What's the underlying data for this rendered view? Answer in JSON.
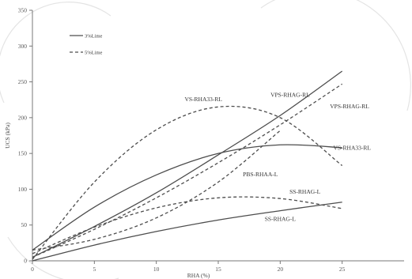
{
  "chart_data": {
    "type": "line",
    "xlabel": "RHA (%)",
    "ylabel": "UCS (kPa)",
    "xlim": [
      0,
      30
    ],
    "ylim": [
      0,
      350
    ],
    "x_ticks": [
      0,
      5,
      10,
      15,
      20,
      25
    ],
    "y_ticks": [
      0,
      50,
      100,
      150,
      200,
      250,
      300,
      350
    ],
    "grid": false,
    "legend": {
      "placement": "top-left",
      "entries": [
        {
          "label": "3%Lime",
          "style": "solid"
        },
        {
          "label": "5%Lime",
          "style": "dashed"
        }
      ]
    },
    "series": [
      {
        "name": "VPS-RHAG-RL",
        "style": "solid",
        "x": [
          0,
          5,
          10,
          15,
          20,
          25
        ],
        "y": [
          5,
          48,
          95,
          148,
          203,
          265
        ]
      },
      {
        "name": "VPS-RHAG-RL",
        "style": "dashed",
        "x": [
          0,
          5,
          10,
          15,
          20,
          25
        ],
        "y": [
          5,
          44,
          88,
          137,
          190,
          247
        ]
      },
      {
        "name": "VS-RHA33-RL",
        "style": "solid",
        "x": [
          0,
          5,
          10,
          15,
          20,
          25
        ],
        "y": [
          15,
          75,
          120,
          150,
          162,
          158
        ]
      },
      {
        "name": "VS-RHA33-RL",
        "style": "dashed",
        "x": [
          0,
          5,
          10,
          15,
          20,
          25
        ],
        "y": [
          2,
          110,
          183,
          215,
          200,
          133
        ]
      },
      {
        "name": "PBS-RHAA-L",
        "style": "dashed",
        "x": [
          0,
          5,
          10,
          15,
          20
        ],
        "y": [
          15,
          30,
          60,
          110,
          182
        ]
      },
      {
        "name": "SS-RHAG-L",
        "style": "dashed",
        "x": [
          0,
          5,
          10,
          15,
          20,
          25
        ],
        "y": [
          10,
          47,
          74,
          88,
          87,
          73
        ]
      },
      {
        "name": "SS-RHAG-L",
        "style": "solid",
        "x": [
          0,
          5,
          10,
          15,
          20,
          25
        ],
        "y": [
          0,
          22,
          41,
          57,
          70,
          82
        ]
      }
    ],
    "annotations": [
      {
        "text": "VS-RHA33-RL",
        "x": 13.8,
        "y": 223
      },
      {
        "text": "VPS-RHAG-RL",
        "x": 20.8,
        "y": 229
      },
      {
        "text": "VPS-RHAG-RL",
        "x": 25.6,
        "y": 213
      },
      {
        "text": "VS-RHA33-RL",
        "x": 25.8,
        "y": 155
      },
      {
        "text": "PBS-RHAA-L",
        "x": 18.4,
        "y": 118
      },
      {
        "text": "SS-RHAG-L",
        "x": 22.0,
        "y": 94
      },
      {
        "text": "SS-RHAG-L",
        "x": 20.0,
        "y": 56
      }
    ]
  }
}
